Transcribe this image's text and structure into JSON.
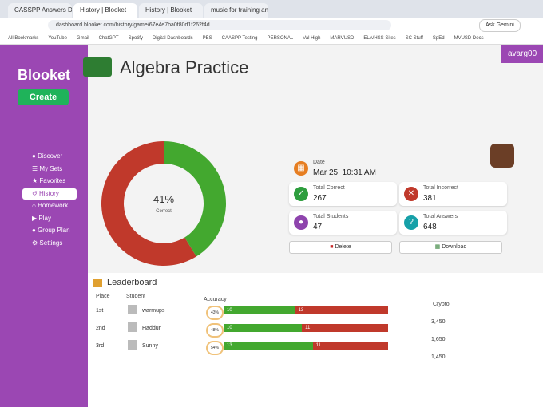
{
  "browser": {
    "tabs": [
      "CASSPP Answers Downlo",
      "History | Blooket",
      "History | Blooket",
      "music for training and workout"
    ],
    "url": "dashboard.blooket.com/history/game/67e4e7ba0f80d1f262f4d",
    "gemini": "Ask Gemini",
    "bookmarks": [
      "All Bookmarks",
      "YouTube",
      "Gmail",
      "ChatGPT",
      "Spotify",
      "Digital Dashboards",
      "PBS",
      "CAASPP Testing",
      "PERSONAL",
      "Val High",
      "MARVUSD",
      "ELA/HSS Sites",
      "SC Stuff",
      "SpEd",
      "MVUSD Docs"
    ]
  },
  "sidebar": {
    "logo": "Blooket",
    "create": "Create",
    "items": [
      "Discover",
      "My Sets",
      "Favorites",
      "History",
      "Homework",
      "Play",
      "Group Plan",
      "Settings"
    ]
  },
  "header": {
    "title": "Algebra Practice",
    "user": "avarg00"
  },
  "summary": {
    "percent": "41%",
    "percent_label": "Correct"
  },
  "stats": {
    "date": {
      "label": "Date",
      "value": "Mar 25, 10:31 AM"
    },
    "total_correct": {
      "label": "Total Correct",
      "value": 267
    },
    "total_incorrect": {
      "label": "Total Incorrect",
      "value": 381
    },
    "total_students": {
      "label": "Total Students",
      "value": 47
    },
    "total_answers": {
      "label": "Total Answers",
      "value": 648
    }
  },
  "buttons": {
    "delete": "Delete",
    "download": "Download"
  },
  "leaderboard": {
    "title": "Leaderboard",
    "headers": {
      "place": "Place",
      "student": "Student",
      "accuracy": "Accuracy",
      "crypto": "Crypto"
    },
    "rows": [
      {
        "place": "1st",
        "name": "warmups",
        "accuracy": "43%",
        "correct": 10,
        "incorrect": 13,
        "crypto": "3,450"
      },
      {
        "place": "2nd",
        "name": "Haddur",
        "accuracy": "48%",
        "correct": 10,
        "incorrect": 11,
        "crypto": "1,650"
      },
      {
        "place": "3rd",
        "name": "Sunny",
        "accuracy": "54%",
        "correct": 13,
        "incorrect": 11,
        "crypto": "1,450"
      }
    ]
  }
}
